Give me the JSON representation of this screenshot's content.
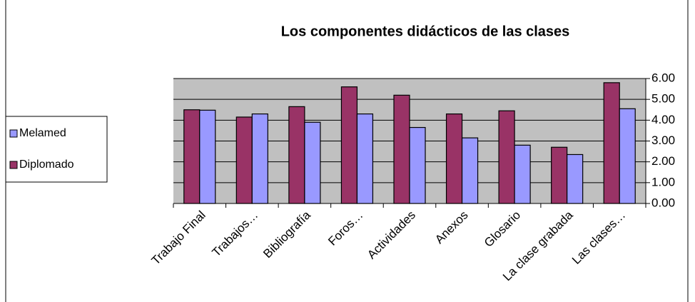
{
  "chart_data": {
    "type": "bar",
    "title": "Los componentes didácticos de las clases",
    "categories": [
      "Trabajo Final",
      "Trabajos…",
      "Bibliografía",
      "Foros…",
      "Actividades",
      "Anexos",
      "Glosario",
      "La clase grabada",
      "Las clases…"
    ],
    "series": [
      {
        "name": "Diplomado",
        "color": "#993366",
        "values": [
          4.5,
          4.15,
          4.65,
          5.6,
          5.2,
          4.3,
          4.45,
          2.7,
          5.8
        ]
      },
      {
        "name": "Melamed",
        "color": "#9999ff",
        "values": [
          4.48,
          4.3,
          3.9,
          4.3,
          3.65,
          3.15,
          2.8,
          2.35,
          4.55
        ]
      }
    ],
    "ylim": [
      0,
      6
    ],
    "yticks": [
      {
        "value": 0,
        "label": "0.00"
      },
      {
        "value": 1,
        "label": "1.00"
      },
      {
        "value": 2,
        "label": "2.00"
      },
      {
        "value": 3,
        "label": "3.00"
      },
      {
        "value": 4,
        "label": "4.00"
      },
      {
        "value": 5,
        "label": "5.00"
      },
      {
        "value": 6,
        "label": "6.00"
      }
    ],
    "grid": true,
    "legend": "left"
  }
}
